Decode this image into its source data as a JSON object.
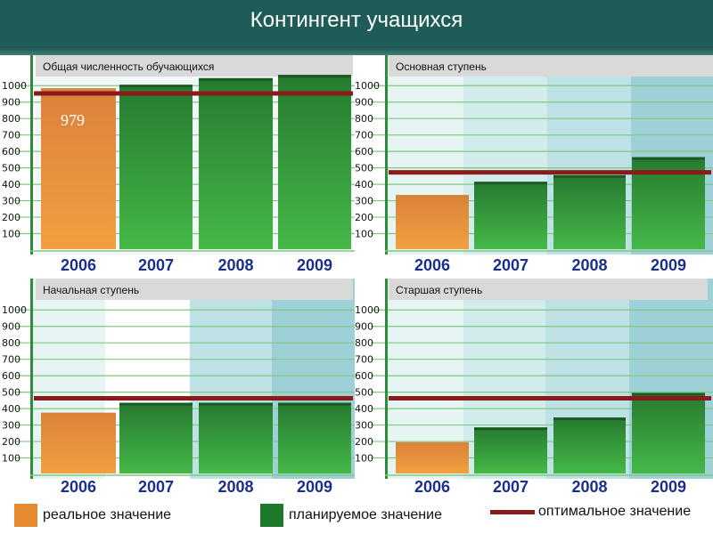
{
  "header": {
    "title": "Контингент учащихся"
  },
  "colors": {
    "real": "#e58a2e",
    "planned": "#1e7a2a",
    "optimal": "#8b1a1a"
  },
  "legend": {
    "real_label": "реальное значение",
    "planned_label": "планируемое значение",
    "optimal_label": "оптимальное значение"
  },
  "chart_data": [
    {
      "type": "bar",
      "title": "Общая численность обучающихся",
      "categories": [
        "2006",
        "2007",
        "2008",
        "2009"
      ],
      "values": [
        979,
        1000,
        1040,
        1060
      ],
      "bar_kinds": [
        "real",
        "planned",
        "planned",
        "planned"
      ],
      "optimal": 950,
      "data_labels": [
        "979",
        "",
        "",
        ""
      ],
      "yticks": [
        100,
        200,
        300,
        400,
        500,
        600,
        700,
        800,
        900,
        1000
      ],
      "ylim": [
        0,
        1050
      ]
    },
    {
      "type": "bar",
      "title": "Основная ступень",
      "categories": [
        "2006",
        "2007",
        "2008",
        "2009"
      ],
      "values": [
        330,
        410,
        450,
        560
      ],
      "bar_kinds": [
        "real",
        "planned",
        "planned",
        "planned"
      ],
      "optimal": 470,
      "data_labels": [
        "",
        "",
        "",
        ""
      ],
      "yticks": [
        100,
        200,
        300,
        400,
        500,
        600,
        700,
        800,
        900,
        1000
      ],
      "ylim": [
        0,
        1050
      ]
    },
    {
      "type": "bar",
      "title": "Начальная ступень",
      "categories": [
        "2006",
        "2007",
        "2008",
        "2009"
      ],
      "values": [
        370,
        430,
        430,
        430
      ],
      "bar_kinds": [
        "real",
        "planned",
        "planned",
        "planned"
      ],
      "optimal": 460,
      "data_labels": [
        "",
        "",
        "",
        ""
      ],
      "yticks": [
        100,
        200,
        300,
        400,
        500,
        600,
        700,
        800,
        900,
        1000
      ],
      "ylim": [
        0,
        1050
      ]
    },
    {
      "type": "bar",
      "title": "Старшая ступень",
      "categories": [
        "2006",
        "2007",
        "2008",
        "2009"
      ],
      "values": [
        190,
        280,
        340,
        490
      ],
      "bar_kinds": [
        "real",
        "planned",
        "planned",
        "planned"
      ],
      "optimal": 460,
      "data_labels": [
        "",
        "",
        "",
        ""
      ],
      "yticks": [
        100,
        200,
        300,
        400,
        500,
        600,
        700,
        800,
        900,
        1000
      ],
      "ylim": [
        0,
        1050
      ]
    }
  ]
}
